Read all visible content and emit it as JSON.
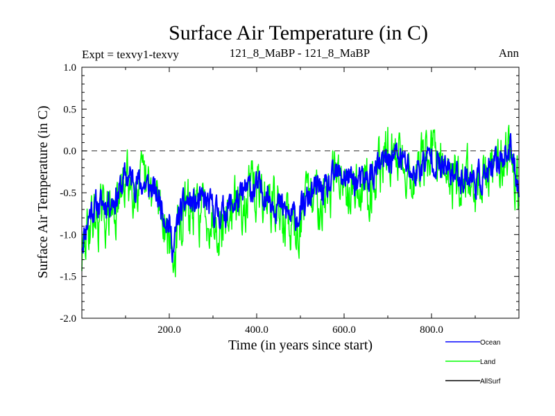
{
  "chart_data": {
    "type": "line",
    "title": "Surface Air Temperature (in C)",
    "subtitle_left": "Expt = texvy1-texvy",
    "subtitle_center": "121_8_MaBP - 121_8_MaBP",
    "subtitle_right": "Ann",
    "xlabel": "Time (in years since start)",
    "ylabel": "Surface Air Temperature (in C)",
    "xlim": [
      0,
      1000
    ],
    "ylim": [
      -2.0,
      1.0
    ],
    "xticks": [
      200,
      400,
      600,
      800
    ],
    "xtick_labels": [
      "200.0",
      "400.0",
      "600.0",
      "800.0"
    ],
    "yticks": [
      -2.0,
      -1.5,
      -1.0,
      -0.5,
      0.0,
      0.5,
      1.0
    ],
    "ytick_labels": [
      "-2.0",
      "-1.5",
      "-1.0",
      "-0.5",
      "0.0",
      "0.5",
      "1.0"
    ],
    "reference_line": 0.0,
    "anchor_x": [
      0,
      20,
      40,
      60,
      80,
      100,
      120,
      140,
      160,
      180,
      200,
      210,
      220,
      240,
      260,
      280,
      300,
      320,
      340,
      360,
      380,
      400,
      420,
      440,
      460,
      480,
      500,
      520,
      540,
      560,
      580,
      600,
      620,
      640,
      660,
      680,
      700,
      720,
      740,
      760,
      780,
      800,
      820,
      840,
      860,
      880,
      900,
      920,
      940,
      960,
      980,
      1000
    ],
    "series": [
      {
        "name": "Ocean",
        "color": "#0000ff",
        "anchor_values": [
          -1.1,
          -0.7,
          -0.65,
          -0.6,
          -0.55,
          -0.3,
          -0.35,
          -0.4,
          -0.45,
          -0.6,
          -0.9,
          -1.2,
          -0.8,
          -0.6,
          -0.65,
          -0.6,
          -0.7,
          -0.75,
          -0.65,
          -0.6,
          -0.45,
          -0.45,
          -0.5,
          -0.6,
          -0.7,
          -0.8,
          -0.75,
          -0.55,
          -0.45,
          -0.5,
          -0.3,
          -0.3,
          -0.35,
          -0.4,
          -0.3,
          -0.2,
          -0.1,
          -0.05,
          -0.15,
          -0.3,
          -0.15,
          -0.05,
          -0.2,
          -0.25,
          -0.3,
          -0.3,
          -0.35,
          -0.3,
          -0.25,
          -0.05,
          0.0,
          -0.4
        ],
        "noise": 0.16,
        "seed": 11
      },
      {
        "name": "Land",
        "color": "#00ff00",
        "anchor_values": [
          -1.3,
          -0.8,
          -0.8,
          -0.75,
          -0.7,
          -0.35,
          -0.35,
          -0.45,
          -0.5,
          -0.65,
          -1.0,
          -1.35,
          -0.95,
          -0.7,
          -0.75,
          -0.7,
          -0.8,
          -0.85,
          -0.75,
          -0.65,
          -0.5,
          -0.5,
          -0.55,
          -0.65,
          -0.8,
          -0.9,
          -0.85,
          -0.6,
          -0.5,
          -0.55,
          -0.3,
          -0.3,
          -0.4,
          -0.45,
          -0.35,
          -0.2,
          -0.05,
          0.0,
          -0.15,
          -0.35,
          -0.15,
          0.0,
          -0.2,
          -0.25,
          -0.35,
          -0.3,
          -0.4,
          -0.35,
          -0.3,
          0.0,
          0.05,
          -0.45
        ],
        "noise": 0.3,
        "seed": 29
      },
      {
        "name": "AllSurf",
        "color": "#000000"
      }
    ]
  }
}
